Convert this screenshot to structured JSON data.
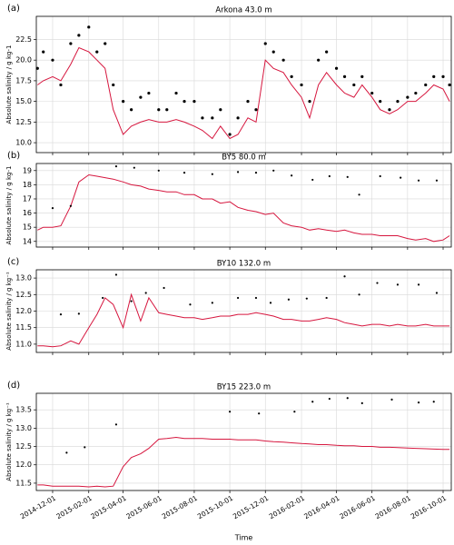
{
  "chart_data": [
    {
      "type": "line",
      "panel_label": "(a)",
      "title": "Arkona 43.0 m",
      "ylabel": "Absolute salinity / g kg-1",
      "grid": true,
      "xlim": [
        "2014-11-03",
        "2016-10-15"
      ],
      "xticks": [
        "2014-12-01",
        "2015-02-01",
        "2015-04-01",
        "2015-06-01",
        "2015-08-01",
        "2015-10-01",
        "2015-12-01",
        "2016-02-01",
        "2016-04-01",
        "2016-06-01",
        "2016-08-01",
        "2016-10-01"
      ],
      "ylim": [
        8.8,
        25.3
      ],
      "yticks": [
        {
          "value": 10,
          "label": "10.0"
        },
        {
          "value": 12.5,
          "label": "12.5"
        },
        {
          "value": 15,
          "label": "15.0"
        },
        {
          "value": 17.5,
          "label": "17.5"
        },
        {
          "value": 20,
          "label": "20.0"
        },
        {
          "value": 22.5,
          "label": "22.5"
        }
      ],
      "series": [
        {
          "style": "dots",
          "color": "#000000",
          "x": [
            "2014-11-05",
            "2014-11-15",
            "2014-12-01",
            "2014-12-15",
            "2015-01-01",
            "2015-01-15",
            "2015-02-01",
            "2015-02-15",
            "2015-03-01",
            "2015-03-15",
            "2015-04-01",
            "2015-04-15",
            "2015-05-01",
            "2015-05-15",
            "2015-06-01",
            "2015-06-15",
            "2015-07-01",
            "2015-07-15",
            "2015-08-01",
            "2015-08-15",
            "2015-09-01",
            "2015-09-15",
            "2015-10-01",
            "2015-10-15",
            "2015-11-01",
            "2015-11-15",
            "2015-12-01",
            "2015-12-15",
            "2016-01-01",
            "2016-01-15",
            "2016-02-01",
            "2016-02-15",
            "2016-03-01",
            "2016-03-15",
            "2016-04-01",
            "2016-04-15",
            "2016-05-01",
            "2016-05-15",
            "2016-06-01",
            "2016-06-15",
            "2016-07-01",
            "2016-07-15",
            "2016-08-01",
            "2016-08-15",
            "2016-09-01",
            "2016-09-15",
            "2016-10-01",
            "2016-10-12"
          ],
          "values": [
            19,
            21,
            20,
            17,
            22,
            23,
            24,
            21,
            22,
            17,
            15,
            14,
            15.5,
            16,
            14,
            14,
            16,
            15,
            15,
            13,
            13,
            14,
            11,
            13,
            15,
            14,
            22,
            21,
            20,
            18,
            17,
            15,
            20,
            21,
            19,
            18,
            17,
            18,
            16,
            15,
            14,
            15,
            15.5,
            16,
            17,
            18,
            18,
            17
          ]
        },
        {
          "style": "line",
          "color": "#d6163e",
          "x": [
            "2014-11-05",
            "2014-11-15",
            "2014-12-01",
            "2014-12-15",
            "2015-01-01",
            "2015-01-15",
            "2015-02-01",
            "2015-02-15",
            "2015-03-01",
            "2015-03-15",
            "2015-04-01",
            "2015-04-15",
            "2015-05-01",
            "2015-05-15",
            "2015-06-01",
            "2015-06-15",
            "2015-07-01",
            "2015-07-15",
            "2015-08-01",
            "2015-08-15",
            "2015-09-01",
            "2015-09-15",
            "2015-10-01",
            "2015-10-15",
            "2015-11-01",
            "2015-11-15",
            "2015-12-01",
            "2015-12-15",
            "2016-01-01",
            "2016-01-15",
            "2016-02-01",
            "2016-02-15",
            "2016-03-01",
            "2016-03-15",
            "2016-04-01",
            "2016-04-15",
            "2016-05-01",
            "2016-05-15",
            "2016-06-01",
            "2016-06-15",
            "2016-07-01",
            "2016-07-15",
            "2016-08-01",
            "2016-08-15",
            "2016-09-01",
            "2016-09-15",
            "2016-10-01",
            "2016-10-12"
          ],
          "values": [
            17,
            17.5,
            18,
            17.5,
            19.5,
            21.5,
            21,
            20,
            19,
            14,
            11,
            12,
            12.5,
            12.8,
            12.5,
            12.5,
            12.8,
            12.5,
            12,
            11.5,
            10.5,
            12,
            10.5,
            11,
            13,
            12.5,
            20,
            19,
            18.5,
            17,
            15.5,
            13,
            17,
            18.5,
            17,
            16,
            15.5,
            17,
            15.5,
            14,
            13.5,
            14,
            15,
            15,
            16,
            17,
            16.5,
            15
          ]
        }
      ]
    },
    {
      "type": "line",
      "panel_label": "(b)",
      "title": "BY5 80.0 m",
      "ylabel": "Absolute salinity / g kg-1",
      "grid": true,
      "xlim": [
        "2014-11-03",
        "2016-10-15"
      ],
      "xticks": [
        "2014-12-01",
        "2015-02-01",
        "2015-04-01",
        "2015-06-01",
        "2015-08-01",
        "2015-10-01",
        "2015-12-01",
        "2016-02-01",
        "2016-04-01",
        "2016-06-01",
        "2016-08-01",
        "2016-10-01"
      ],
      "ylim": [
        13.6,
        19.5
      ],
      "yticks": [
        14,
        15,
        16,
        17,
        18,
        19
      ],
      "series": [
        {
          "style": "line",
          "color": "#d6163e",
          "x": [
            "2014-11-05",
            "2014-11-15",
            "2014-12-01",
            "2014-12-15",
            "2015-01-01",
            "2015-01-15",
            "2015-02-01",
            "2015-02-15",
            "2015-03-01",
            "2015-03-15",
            "2015-04-01",
            "2015-04-15",
            "2015-05-01",
            "2015-05-15",
            "2015-06-01",
            "2015-06-15",
            "2015-07-01",
            "2015-07-15",
            "2015-08-01",
            "2015-08-15",
            "2015-09-01",
            "2015-09-15",
            "2015-10-01",
            "2015-10-15",
            "2015-11-01",
            "2015-11-15",
            "2015-12-01",
            "2015-12-15",
            "2016-01-01",
            "2016-01-15",
            "2016-02-01",
            "2016-02-15",
            "2016-03-01",
            "2016-03-15",
            "2016-04-01",
            "2016-04-15",
            "2016-05-01",
            "2016-05-15",
            "2016-06-01",
            "2016-06-15",
            "2016-07-01",
            "2016-07-15",
            "2016-08-01",
            "2016-08-15",
            "2016-09-01",
            "2016-09-15",
            "2016-10-01",
            "2016-10-12"
          ],
          "values": [
            14.8,
            15.0,
            15.0,
            15.1,
            16.5,
            18.2,
            18.7,
            18.6,
            18.5,
            18.4,
            18.2,
            18.0,
            17.9,
            17.7,
            17.6,
            17.5,
            17.5,
            17.3,
            17.3,
            17.0,
            17.0,
            16.7,
            16.8,
            16.4,
            16.2,
            16.1,
            15.9,
            16.0,
            15.3,
            15.1,
            15.0,
            14.8,
            14.9,
            14.8,
            14.7,
            14.8,
            14.6,
            14.5,
            14.5,
            14.4,
            14.4,
            14.4,
            14.2,
            14.1,
            14.2,
            14.0,
            14.1,
            14.4
          ]
        },
        {
          "style": "dots",
          "color": "#000000",
          "x": [
            "2014-12-01",
            "2015-01-01",
            "2015-03-20",
            "2015-04-20",
            "2015-06-01",
            "2015-07-15",
            "2015-09-01",
            "2015-10-15",
            "2015-11-15",
            "2015-12-15",
            "2016-01-15",
            "2016-02-20",
            "2016-03-20",
            "2016-04-20",
            "2016-05-10",
            "2016-06-15",
            "2016-07-20",
            "2016-08-20",
            "2016-09-20"
          ],
          "values": [
            16.35,
            16.5,
            19.3,
            19.2,
            19.0,
            18.85,
            18.75,
            18.9,
            18.85,
            19.0,
            18.65,
            18.35,
            18.6,
            18.55,
            17.3,
            18.6,
            18.5,
            18.3,
            18.3
          ]
        }
      ]
    },
    {
      "type": "line",
      "panel_label": "(c)",
      "title": "BY10 132.0 m",
      "ylabel": "Absolute salinity / g kg⁻¹",
      "grid": true,
      "xlim": [
        "2014-11-03",
        "2016-10-15"
      ],
      "xticks": [
        "2014-12-01",
        "2015-02-01",
        "2015-04-01",
        "2015-06-01",
        "2015-08-01",
        "2015-10-01",
        "2015-12-01",
        "2016-02-01",
        "2016-04-01",
        "2016-06-01",
        "2016-08-01",
        "2016-10-01"
      ],
      "ylim": [
        10.75,
        13.25
      ],
      "yticks": [
        {
          "value": 11,
          "label": "11.0"
        },
        11.5,
        {
          "value": 12,
          "label": "12.0"
        },
        12.5,
        {
          "value": 13,
          "label": "13.0"
        }
      ],
      "series": [
        {
          "style": "line",
          "color": "#d6163e",
          "x": [
            "2014-11-05",
            "2014-11-15",
            "2014-12-01",
            "2014-12-15",
            "2015-01-01",
            "2015-01-15",
            "2015-02-01",
            "2015-02-15",
            "2015-03-01",
            "2015-03-15",
            "2015-04-01",
            "2015-04-15",
            "2015-05-01",
            "2015-05-15",
            "2015-06-01",
            "2015-06-15",
            "2015-07-01",
            "2015-07-15",
            "2015-08-01",
            "2015-08-15",
            "2015-09-01",
            "2015-09-15",
            "2015-10-01",
            "2015-10-15",
            "2015-11-01",
            "2015-11-15",
            "2015-12-01",
            "2015-12-15",
            "2016-01-01",
            "2016-01-15",
            "2016-02-01",
            "2016-02-15",
            "2016-03-01",
            "2016-03-15",
            "2016-04-01",
            "2016-04-15",
            "2016-05-01",
            "2016-05-15",
            "2016-06-01",
            "2016-06-15",
            "2016-07-01",
            "2016-07-15",
            "2016-08-01",
            "2016-08-15",
            "2016-09-01",
            "2016-09-15",
            "2016-10-01",
            "2016-10-12"
          ],
          "values": [
            10.95,
            10.95,
            10.92,
            10.95,
            11.1,
            11.0,
            11.5,
            11.9,
            12.4,
            12.2,
            11.5,
            12.5,
            11.7,
            12.4,
            11.95,
            11.9,
            11.85,
            11.8,
            11.8,
            11.75,
            11.8,
            11.85,
            11.85,
            11.9,
            11.9,
            11.95,
            11.9,
            11.85,
            11.75,
            11.75,
            11.7,
            11.7,
            11.75,
            11.8,
            11.75,
            11.65,
            11.6,
            11.55,
            11.6,
            11.6,
            11.55,
            11.6,
            11.55,
            11.55,
            11.6,
            11.55,
            11.55,
            11.55
          ]
        },
        {
          "style": "dots",
          "color": "#000000",
          "x": [
            "2014-12-15",
            "2015-01-15",
            "2015-02-25",
            "2015-03-20",
            "2015-04-15",
            "2015-05-10",
            "2015-06-10",
            "2015-07-25",
            "2015-09-01",
            "2015-10-15",
            "2015-11-15",
            "2015-12-10",
            "2016-01-10",
            "2016-02-10",
            "2016-03-15",
            "2016-04-15",
            "2016-05-10",
            "2016-06-10",
            "2016-07-15",
            "2016-08-20",
            "2016-09-20"
          ],
          "values": [
            11.9,
            11.92,
            12.4,
            13.1,
            12.3,
            12.55,
            12.7,
            12.2,
            12.25,
            12.4,
            12.4,
            12.25,
            12.35,
            12.38,
            12.4,
            13.05,
            12.5,
            12.85,
            12.8,
            12.8,
            12.55
          ]
        }
      ]
    },
    {
      "type": "line",
      "panel_label": "(d)",
      "title": "BY15 223.0 m",
      "ylabel": "Absolute salinity / g kg⁻¹",
      "xlabel": "Time",
      "grid": true,
      "xlim": [
        "2014-11-03",
        "2016-10-15"
      ],
      "xticks": [
        "2014-12-01",
        "2015-02-01",
        "2015-04-01",
        "2015-06-01",
        "2015-08-01",
        "2015-10-01",
        "2015-12-01",
        "2016-02-01",
        "2016-04-01",
        "2016-06-01",
        "2016-08-01",
        "2016-10-01"
      ],
      "ylim": [
        11.3,
        13.95
      ],
      "yticks": [
        11.5,
        {
          "value": 12,
          "label": "12.0"
        },
        12.5,
        {
          "value": 13,
          "label": "13.0"
        },
        13.5
      ],
      "series": [
        {
          "style": "line",
          "color": "#d6163e",
          "x": [
            "2014-11-05",
            "2014-11-15",
            "2014-12-01",
            "2014-12-15",
            "2015-01-01",
            "2015-01-15",
            "2015-02-01",
            "2015-02-15",
            "2015-03-01",
            "2015-03-15",
            "2015-04-01",
            "2015-04-15",
            "2015-05-01",
            "2015-05-15",
            "2015-06-01",
            "2015-06-15",
            "2015-07-01",
            "2015-07-15",
            "2015-08-01",
            "2015-08-15",
            "2015-09-01",
            "2015-09-15",
            "2015-10-01",
            "2015-10-15",
            "2015-11-01",
            "2015-11-15",
            "2015-12-01",
            "2015-12-15",
            "2016-01-01",
            "2016-01-15",
            "2016-02-01",
            "2016-02-15",
            "2016-03-01",
            "2016-03-15",
            "2016-04-01",
            "2016-04-15",
            "2016-05-01",
            "2016-05-15",
            "2016-06-01",
            "2016-06-15",
            "2016-07-01",
            "2016-07-15",
            "2016-08-01",
            "2016-08-15",
            "2016-09-01",
            "2016-09-15",
            "2016-10-01",
            "2016-10-12"
          ],
          "values": [
            11.45,
            11.45,
            11.42,
            11.42,
            11.42,
            11.42,
            11.4,
            11.42,
            11.4,
            11.42,
            11.95,
            12.2,
            12.3,
            12.45,
            12.7,
            12.72,
            12.75,
            12.72,
            12.72,
            12.72,
            12.7,
            12.7,
            12.7,
            12.68,
            12.68,
            12.68,
            12.65,
            12.63,
            12.62,
            12.6,
            12.58,
            12.57,
            12.55,
            12.55,
            12.53,
            12.52,
            12.52,
            12.5,
            12.5,
            12.48,
            12.48,
            12.47,
            12.46,
            12.45,
            12.44,
            12.43,
            12.42,
            12.42
          ]
        },
        {
          "style": "dots",
          "color": "#000000",
          "x": [
            "2014-12-25",
            "2015-01-25",
            "2015-03-20",
            "2015-10-01",
            "2015-11-20",
            "2016-01-20",
            "2016-02-20",
            "2016-03-20",
            "2016-04-20",
            "2016-05-15",
            "2016-07-05",
            "2016-08-20",
            "2016-09-15"
          ],
          "values": [
            12.33,
            12.48,
            13.1,
            13.45,
            13.4,
            13.45,
            13.72,
            13.8,
            13.82,
            13.68,
            13.78,
            13.7,
            13.72
          ]
        }
      ]
    }
  ]
}
